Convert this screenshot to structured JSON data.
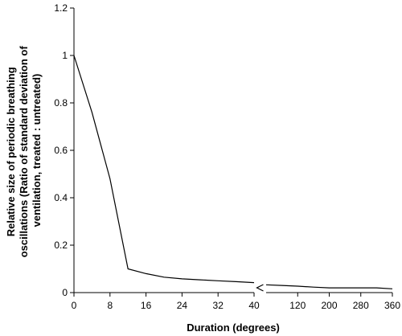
{
  "chart_data": {
    "type": "line",
    "title": "",
    "xlabel": "Duration (degrees)",
    "ylabel_lines": [
      "Relative size of periodic breathing",
      "oscillations (Ratio of standard deviation of",
      "ventilation, treated : untreated)"
    ],
    "ylim": [
      0,
      1.2
    ],
    "yticks": [
      "0",
      "0.2",
      "0.4",
      "0.6",
      "0.8",
      "1",
      "1.2"
    ],
    "y_tick_values": [
      0,
      0.2,
      0.4,
      0.6,
      0.8,
      1.0,
      1.2
    ],
    "axis_break": true,
    "grid": false,
    "legend": "none",
    "segments": [
      {
        "xlim": [
          0,
          40
        ],
        "xticks": [
          "0",
          "8",
          "16",
          "24",
          "32",
          "40"
        ],
        "x_tick_values": [
          0,
          8,
          16,
          24,
          32,
          40
        ],
        "x": [
          0,
          4,
          8,
          12,
          16,
          20,
          24,
          28,
          32,
          36,
          40
        ],
        "y": [
          1.0,
          0.76,
          0.48,
          0.1,
          0.08,
          0.065,
          0.058,
          0.054,
          0.05,
          0.046,
          0.042
        ]
      },
      {
        "xlim": [
          40,
          360
        ],
        "xticks": [
          "120",
          "200",
          "280",
          "360"
        ],
        "x_tick_values": [
          120,
          200,
          280,
          360
        ],
        "x": [
          40,
          80,
          120,
          160,
          200,
          240,
          280,
          320,
          360
        ],
        "y": [
          0.033,
          0.03,
          0.027,
          0.023,
          0.02,
          0.02,
          0.02,
          0.02,
          0.016
        ]
      }
    ]
  }
}
